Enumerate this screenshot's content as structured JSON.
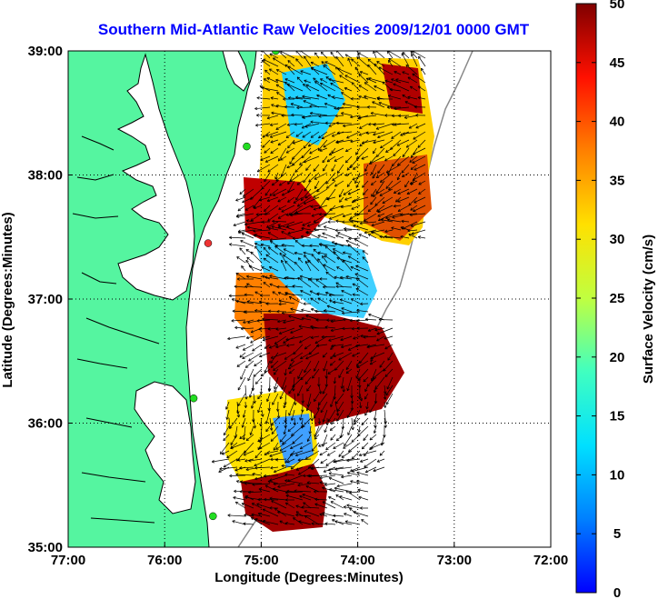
{
  "title": "Southern Mid-Atlantic Raw Velocities 2009/12/01 0000 GMT",
  "title_color": "#0000ff",
  "xlabel": "Longitude (Degrees:Minutes)",
  "ylabel": "Latitude (Degrees:Minutes)",
  "x_ticks": [
    "77:00",
    "76:00",
    "75:00",
    "74:00",
    "73:00",
    "72:00"
  ],
  "y_ticks": [
    "39:00",
    "38:00",
    "37:00",
    "36:00",
    "35:00"
  ],
  "colorbar": {
    "label": "Surface Velocity (cm/s)",
    "ticks": [
      "0",
      "5",
      "10",
      "15",
      "20",
      "25",
      "30",
      "35",
      "40",
      "45",
      "50"
    ],
    "range": [
      0,
      50
    ]
  },
  "colors": {
    "land": "#55f5a0",
    "coastline": "#000000",
    "station": "#22dd22",
    "station_alt": "#ee3333",
    "grid": "#000000"
  },
  "map": {
    "lon_range": [
      -77,
      -72
    ],
    "lat_range": [
      35,
      39
    ],
    "stations": [
      {
        "lon": -74.85,
        "lat": 39.0,
        "type": "normal"
      },
      {
        "lon": -75.15,
        "lat": 38.23,
        "type": "normal"
      },
      {
        "lon": -75.55,
        "lat": 37.45,
        "type": "alt"
      },
      {
        "lon": -75.7,
        "lat": 36.2,
        "type": "normal"
      },
      {
        "lon": -75.5,
        "lat": 35.25,
        "type": "normal"
      }
    ]
  }
}
